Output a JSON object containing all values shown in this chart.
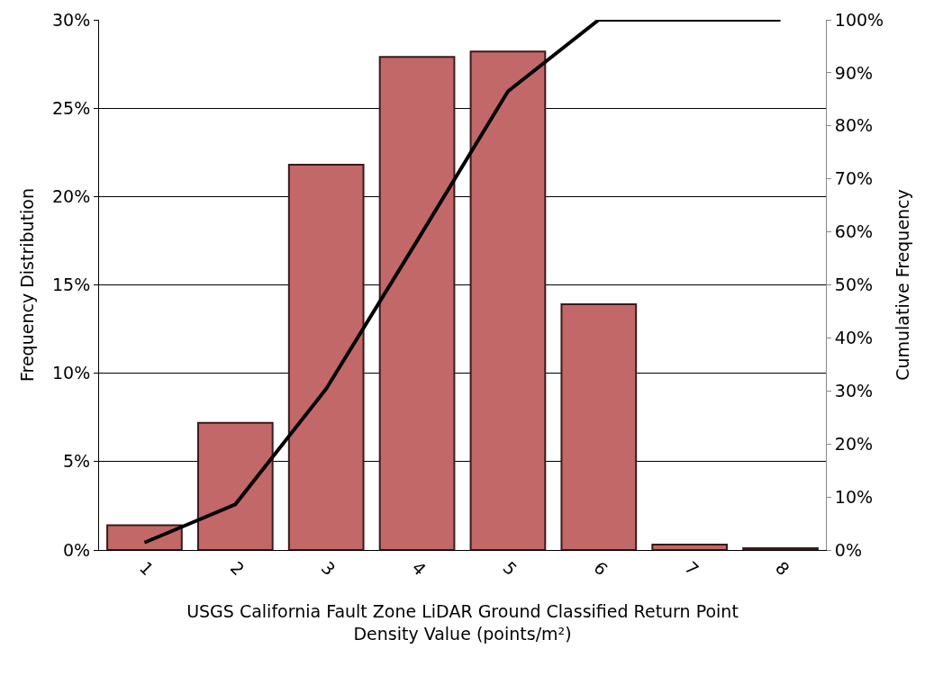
{
  "chart_data": {
    "type": "bar",
    "categories": [
      "1",
      "2",
      "3",
      "4",
      "5",
      "6",
      "7",
      "8"
    ],
    "xlabel": "USGS California Fault Zone LiDAR Ground Classified Return Point\nDensity Value (points/m²)",
    "ylabel": "Frequency Distribution",
    "y2label": "Cumulative Frequency",
    "series": [
      {
        "color": "#c26868",
        "values": [
          1.4,
          7.2,
          21.8,
          27.9,
          28.2,
          13.9,
          0.3,
          0.1
        ]
      },
      {
        "type": "line",
        "axis": "y2",
        "color": "#000000",
        "values": [
          1.4,
          8.6,
          30.4,
          58.3,
          86.5,
          100,
          100,
          100
        ]
      }
    ],
    "ylim": [
      0,
      30
    ],
    "yticks": [
      {
        "value": 0,
        "label": "0%"
      },
      {
        "value": 5,
        "label": "5%"
      },
      {
        "value": 10,
        "label": "10%"
      },
      {
        "value": 15,
        "label": "15%"
      },
      {
        "value": 20,
        "label": "20%"
      },
      {
        "value": 25,
        "label": "25%"
      },
      {
        "value": 30,
        "label": "30%"
      }
    ],
    "y2lim": [
      0,
      100
    ],
    "y2ticks": [
      {
        "value": 0,
        "label": "0%"
      },
      {
        "value": 10,
        "label": "10%"
      },
      {
        "value": 20,
        "label": "20%"
      },
      {
        "value": 30,
        "label": "30%"
      },
      {
        "value": 40,
        "label": "40%"
      },
      {
        "value": 50,
        "label": "50%"
      },
      {
        "value": 60,
        "label": "60%"
      },
      {
        "value": 70,
        "label": "70%"
      },
      {
        "value": 80,
        "label": "80%"
      },
      {
        "value": 90,
        "label": "90%"
      },
      {
        "value": 100,
        "label": "100%"
      }
    ],
    "grid": "y",
    "marker": "none",
    "line_style": "solid"
  }
}
